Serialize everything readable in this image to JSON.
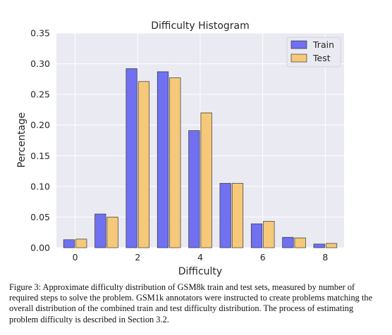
{
  "chart_data": {
    "type": "bar",
    "title": "Difficulty Histogram",
    "xlabel": "Difficulty",
    "ylabel": "Percentage",
    "x": [
      0,
      1,
      2,
      3,
      4,
      5,
      6,
      7,
      8
    ],
    "xticks": [
      "0",
      "2",
      "4",
      "6",
      "8"
    ],
    "yticks": [
      "0.00",
      "0.05",
      "0.10",
      "0.15",
      "0.20",
      "0.25",
      "0.30",
      "0.35"
    ],
    "ylim": [
      0,
      0.35
    ],
    "xlim": [
      -0.6,
      8.6
    ],
    "grid": true,
    "legend_position": "top-right",
    "series": [
      {
        "name": "Train",
        "color": "#7070f0",
        "values": [
          0.013,
          0.055,
          0.292,
          0.287,
          0.191,
          0.105,
          0.039,
          0.017,
          0.006
        ]
      },
      {
        "name": "Test",
        "color": "#f5c87a",
        "values": [
          0.014,
          0.05,
          0.271,
          0.277,
          0.22,
          0.105,
          0.043,
          0.016,
          0.007
        ]
      }
    ]
  },
  "caption": "Figure 3: Approximate difficulty distribution of GSM8k train and test sets, measured by number of required steps to solve the problem. GSM1k annotators were instructed to create problems matching the overall distribution of the combined train and test difficulty distribution. The process of estimating problem difficulty is described in Section 3.2."
}
